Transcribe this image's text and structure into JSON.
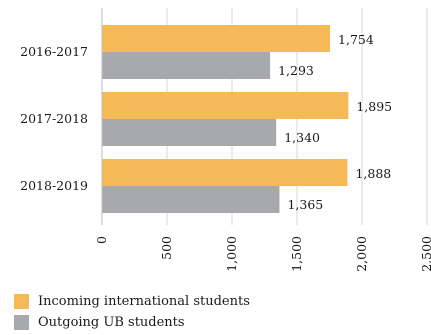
{
  "chart_data": {
    "type": "bar",
    "orientation": "horizontal",
    "categories": [
      "2016-2017",
      "2017-2018",
      "2018-2019"
    ],
    "series": [
      {
        "name": "Incoming international students",
        "values": [
          1754,
          1895,
          1888
        ],
        "value_labels": [
          "1,754",
          "1,895",
          "1,888"
        ],
        "color": "#F6B957"
      },
      {
        "name": "Outgoing UB students",
        "values": [
          1293,
          1340,
          1365
        ],
        "value_labels": [
          "1,293",
          "1,340",
          "1,365"
        ],
        "color": "#A8A9AD"
      }
    ],
    "xlim": [
      0,
      2500
    ],
    "x_ticks": [
      0,
      500,
      1000,
      1500,
      2000,
      2500
    ],
    "x_tick_labels": [
      "0",
      "500",
      "1,000",
      "1,500",
      "2,000",
      "2,500"
    ],
    "grid": "vertical",
    "gridline_color": "#d7d7d7",
    "legend_position": "bottom-left",
    "title": "",
    "xlabel": "",
    "ylabel": ""
  },
  "legend": [
    {
      "label": "Incoming international students",
      "color": "#F6B957"
    },
    {
      "label": "Outgoing UB students",
      "color": "#A8A9AD"
    }
  ]
}
